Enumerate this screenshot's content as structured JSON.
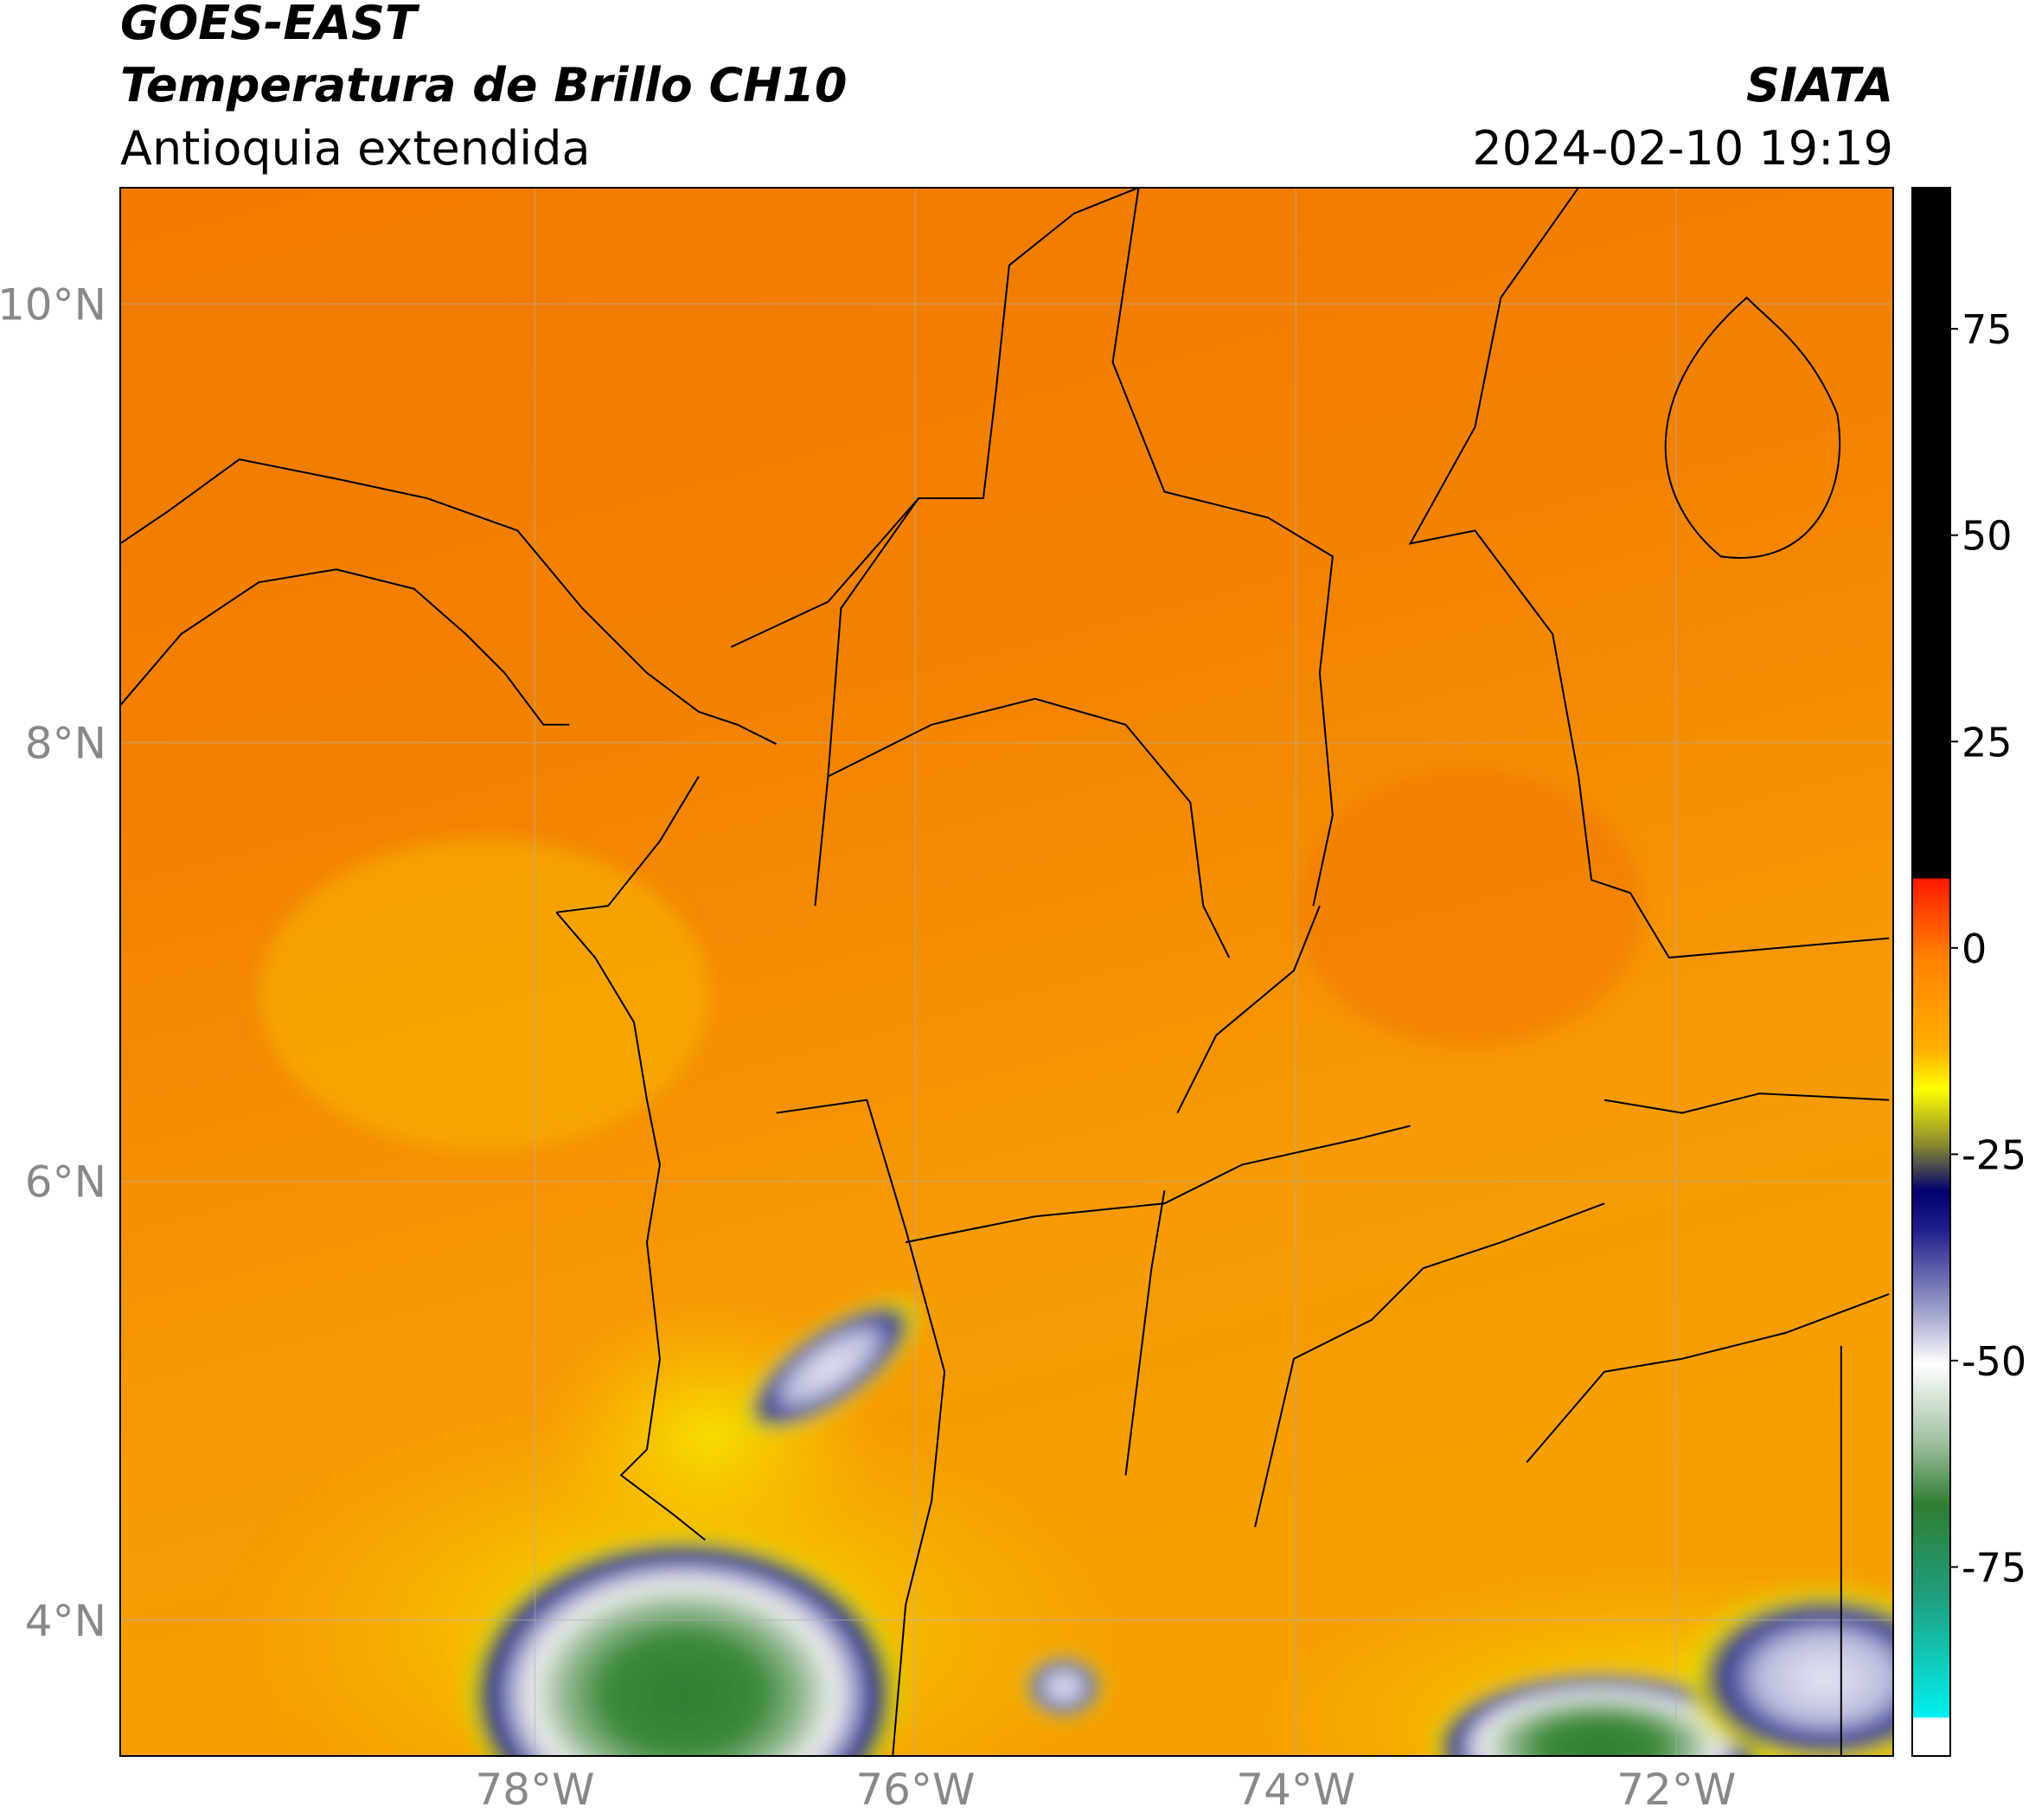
{
  "header": {
    "title": "GOES-EAST",
    "subtitle": "Temperatura de Brillo CH10",
    "region": "Antioquia extendida",
    "source": "SIATA",
    "datetime": "2024-02-10 19:19"
  },
  "map": {
    "type": "map",
    "xlim": [
      -80.18,
      -70.86
    ],
    "ylim": [
      3.38,
      10.53
    ],
    "xticks": [
      {
        "value": -78,
        "label": "78°W"
      },
      {
        "value": -76,
        "label": "76°W"
      },
      {
        "value": -74,
        "label": "74°W"
      },
      {
        "value": -72,
        "label": "72°W"
      }
    ],
    "yticks": [
      {
        "value": 4,
        "label": "4°N"
      },
      {
        "value": 6,
        "label": "6°N"
      },
      {
        "value": 8,
        "label": "8°N"
      },
      {
        "value": 10,
        "label": "10°N"
      }
    ],
    "grid": true
  },
  "colorbar": {
    "vlim": [
      -97.9,
      92.1
    ],
    "ticks": [
      -75,
      -50,
      -25,
      0,
      25,
      50,
      75
    ]
  }
}
